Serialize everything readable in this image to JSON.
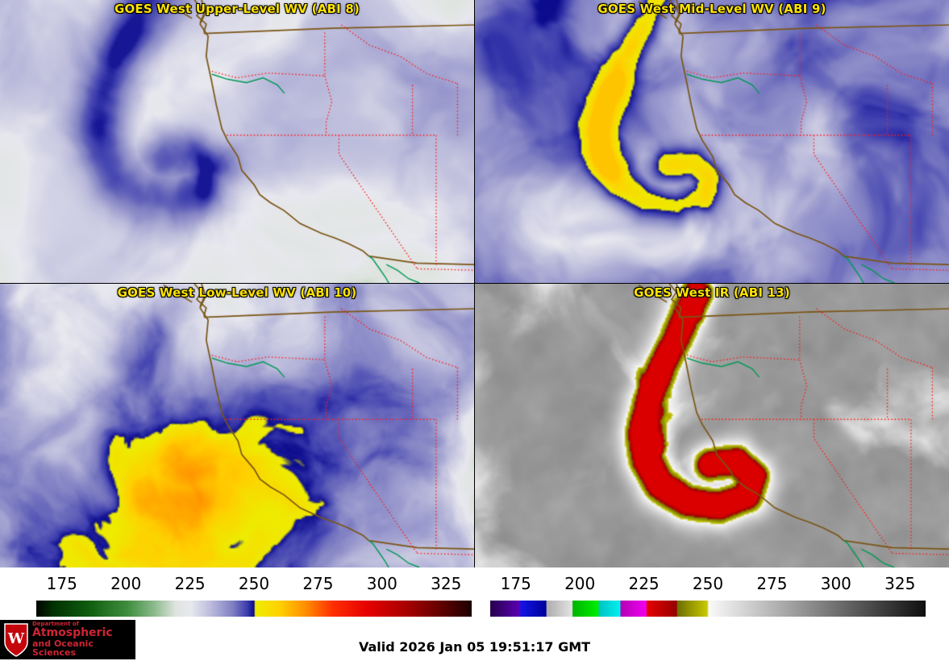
{
  "panels": [
    {
      "title": "GOES West Upper-Level WV (ABI 8)"
    },
    {
      "title": "GOES West Mid-Level WV (ABI 9)"
    },
    {
      "title": "GOES West Low-Level WV (ABI 10)"
    },
    {
      "title": "GOES West IR (ABI 13)"
    }
  ],
  "colorbar_left": {
    "ticks": [
      "175",
      "200",
      "225",
      "250",
      "275",
      "300",
      "325"
    ],
    "range": [
      165,
      335
    ],
    "stops": [
      [
        0.0,
        "#000500"
      ],
      [
        0.04,
        "#013201"
      ],
      [
        0.12,
        "#0f5c0f"
      ],
      [
        0.21,
        "#3f8e3f"
      ],
      [
        0.27,
        "#8ab98a"
      ],
      [
        0.32,
        "#dfe4df"
      ],
      [
        0.355,
        "#e8e8ef"
      ],
      [
        0.4,
        "#bcbcdc"
      ],
      [
        0.45,
        "#8181c4"
      ],
      [
        0.485,
        "#3c3cae"
      ],
      [
        0.5,
        "#0b0b8e"
      ],
      [
        0.503,
        "#eded00"
      ],
      [
        0.56,
        "#ffd000"
      ],
      [
        0.62,
        "#ff8c00"
      ],
      [
        0.68,
        "#ff3000"
      ],
      [
        0.76,
        "#e60000"
      ],
      [
        0.85,
        "#a80000"
      ],
      [
        0.93,
        "#600000"
      ],
      [
        1.0,
        "#1c0000"
      ]
    ]
  },
  "colorbar_right": {
    "ticks": [
      "175",
      "200",
      "225",
      "250",
      "275",
      "300",
      "325"
    ],
    "range": [
      165,
      335
    ],
    "stops": [
      [
        0.0,
        "#26004d"
      ],
      [
        0.068,
        "#5a00b4"
      ],
      [
        0.07,
        "#1414e6"
      ],
      [
        0.128,
        "#00009b"
      ],
      [
        0.13,
        "#adadad"
      ],
      [
        0.188,
        "#e3e3e3"
      ],
      [
        0.19,
        "#00b400"
      ],
      [
        0.248,
        "#00ee00"
      ],
      [
        0.25,
        "#00c3c3"
      ],
      [
        0.298,
        "#00f0f0"
      ],
      [
        0.3,
        "#b400b4"
      ],
      [
        0.358,
        "#f000f0"
      ],
      [
        0.36,
        "#e60000"
      ],
      [
        0.428,
        "#960000"
      ],
      [
        0.43,
        "#6e6e00"
      ],
      [
        0.498,
        "#c8c800"
      ],
      [
        0.502,
        "#fafafa"
      ],
      [
        1.0,
        "#0f0f0f"
      ]
    ]
  },
  "map_colors": {
    "state_border": "#ff1a1a",
    "coast": "#7a5514",
    "river": "#009955",
    "title_yellow": "#ffe400"
  },
  "footer": {
    "valid_time": "Valid 2026 Jan 05 19:51:17 GMT",
    "logo": {
      "line1": "Department of",
      "line2": "Atmospheric",
      "line3": "and Oceanic Sciences"
    }
  }
}
